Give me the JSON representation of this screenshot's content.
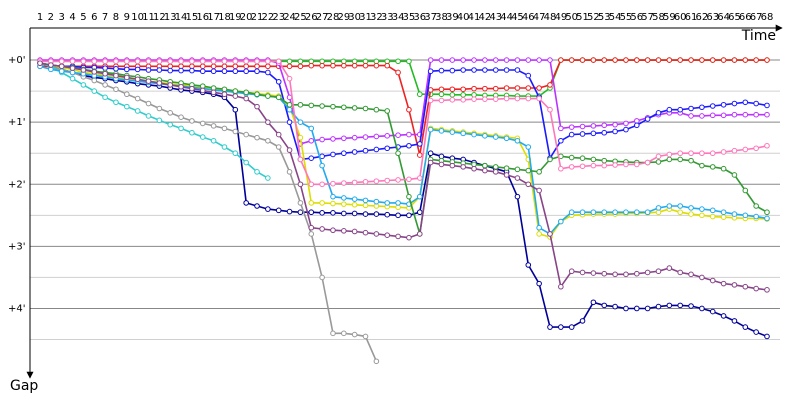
{
  "chart_data": {
    "type": "line",
    "x_label": "Time",
    "y_label": "Gap",
    "x": [
      1,
      2,
      3,
      4,
      5,
      6,
      7,
      8,
      9,
      10,
      11,
      12,
      13,
      14,
      15,
      16,
      17,
      18,
      19,
      20,
      21,
      22,
      23,
      24,
      25,
      26,
      27,
      28,
      29,
      30,
      31,
      32,
      33,
      34,
      35,
      36,
      37,
      38,
      39,
      40,
      41,
      42,
      43,
      44,
      45,
      46,
      47,
      48,
      49,
      50,
      51,
      52,
      53,
      54,
      55,
      56,
      57,
      58,
      59,
      60,
      61,
      62,
      63,
      64,
      65,
      66,
      67,
      68
    ],
    "xlim": [
      1,
      68
    ],
    "ylim": [
      -0.5,
      5.2
    ],
    "yticks": [
      {
        "value": 0,
        "label": "+0'"
      },
      {
        "value": 1,
        "label": "+1'"
      },
      {
        "value": 2,
        "label": "+2'"
      },
      {
        "value": 3,
        "label": "+3'"
      },
      {
        "value": 4,
        "label": "+4'"
      }
    ],
    "yminor": [
      0.5,
      1.5,
      2.5,
      3.5,
      4.5
    ],
    "grid": true,
    "series": [
      {
        "color": "#22bb22",
        "values": [
          0.02,
          0.02,
          0.02,
          0.02,
          0.02,
          0.02,
          0.02,
          0.02,
          0.02,
          0.02,
          0.02,
          0.02,
          0.02,
          0.02,
          0.02,
          0.02,
          0.02,
          0.02,
          0.02,
          0.02,
          0.02,
          0.02,
          0.02,
          0.02,
          0.02,
          0.02,
          0.02,
          0.02,
          0.02,
          0.02,
          0.02,
          0.02,
          0.02,
          0.02,
          0.02,
          0.55,
          0.55,
          0.55,
          0.56,
          0.56,
          0.56,
          0.57,
          0.57,
          0.57,
          0.58,
          0.58,
          0.58,
          0.45,
          0,
          0,
          0,
          0,
          0,
          0,
          0,
          0,
          0,
          0,
          0,
          0,
          0,
          0,
          0,
          0,
          0,
          0,
          0,
          0
        ]
      },
      {
        "color": "#ee2222",
        "values": [
          0.1,
          0.1,
          0.1,
          0.1,
          0.1,
          0.1,
          0.1,
          0.1,
          0.1,
          0.1,
          0.1,
          0.1,
          0.1,
          0.1,
          0.1,
          0.1,
          0.1,
          0.1,
          0.1,
          0.1,
          0.1,
          0.1,
          0.1,
          0.1,
          0.1,
          0.09,
          0.09,
          0.09,
          0.09,
          0.09,
          0.09,
          0.09,
          0.09,
          0.2,
          0.8,
          1.53,
          0.48,
          0.47,
          0.47,
          0.47,
          0.46,
          0.46,
          0.46,
          0.45,
          0.45,
          0.45,
          0.45,
          0.4,
          0,
          0,
          0,
          0,
          0,
          0,
          0,
          0,
          0,
          0,
          0,
          0,
          0,
          0,
          0,
          0,
          0,
          0,
          0,
          0
        ]
      },
      {
        "color": "#bb33ff",
        "values": [
          0,
          0,
          0,
          0,
          0,
          0,
          0,
          0,
          0,
          0,
          0,
          0,
          0,
          0,
          0,
          0,
          0,
          0,
          0,
          0,
          0,
          0,
          0.05,
          0.6,
          1.35,
          1.3,
          1.28,
          1.27,
          1.26,
          1.25,
          1.24,
          1.23,
          1.22,
          1.21,
          1.2,
          1.2,
          0,
          0,
          0,
          0,
          0,
          0,
          0,
          0,
          0,
          0,
          0,
          0,
          1.1,
          1.08,
          1.07,
          1.06,
          1.05,
          1.04,
          1.02,
          0.98,
          0.93,
          0.88,
          0.85,
          0.85,
          0.9,
          0.9,
          0.89,
          0.89,
          0.88,
          0.88,
          0.88,
          0.88
        ]
      },
      {
        "color": "#1a1aff",
        "values": [
          0.05,
          0.08,
          0.1,
          0.1,
          0.12,
          0.12,
          0.13,
          0.14,
          0.15,
          0.15,
          0.16,
          0.16,
          0.17,
          0.17,
          0.17,
          0.18,
          0.18,
          0.18,
          0.18,
          0.18,
          0.18,
          0.2,
          0.35,
          1.0,
          1.6,
          1.58,
          1.55,
          1.52,
          1.5,
          1.48,
          1.46,
          1.44,
          1.42,
          1.4,
          1.38,
          1.35,
          0.18,
          0.17,
          0.17,
          0.16,
          0.16,
          0.16,
          0.16,
          0.16,
          0.16,
          0.25,
          0.6,
          1.58,
          1.3,
          1.2,
          1.19,
          1.18,
          1.17,
          1.15,
          1.12,
          1.05,
          0.95,
          0.85,
          0.8,
          0.8,
          0.78,
          0.76,
          0.74,
          0.72,
          0.7,
          0.68,
          0.7,
          0.73
        ]
      },
      {
        "color": "#000099",
        "values": [
          0.05,
          0.1,
          0.15,
          0.2,
          0.25,
          0.28,
          0.3,
          0.33,
          0.35,
          0.38,
          0.4,
          0.42,
          0.45,
          0.48,
          0.5,
          0.52,
          0.55,
          0.6,
          0.8,
          2.3,
          2.35,
          2.4,
          2.42,
          2.44,
          2.45,
          2.45,
          2.46,
          2.46,
          2.47,
          2.47,
          2.48,
          2.48,
          2.49,
          2.5,
          2.5,
          2.45,
          1.5,
          1.55,
          1.58,
          1.6,
          1.65,
          1.7,
          1.75,
          1.8,
          2.2,
          3.3,
          3.6,
          4.3,
          4.3,
          4.3,
          4.2,
          3.9,
          3.95,
          3.97,
          4.0,
          4.0,
          4.0,
          3.97,
          3.95,
          3.95,
          3.96,
          4.0,
          4.05,
          4.12,
          4.2,
          4.3,
          4.38,
          4.45
        ]
      },
      {
        "color": "#999999",
        "values": [
          0.05,
          0.1,
          0.15,
          0.2,
          0.27,
          0.33,
          0.4,
          0.47,
          0.55,
          0.62,
          0.7,
          0.78,
          0.85,
          0.92,
          0.98,
          1.02,
          1.06,
          1.1,
          1.15,
          1.2,
          1.25,
          1.3,
          1.4,
          1.8,
          2.3,
          2.8,
          3.5,
          4.4,
          4.4,
          4.42,
          4.45,
          4.85,
          null,
          null,
          null,
          null,
          null,
          null,
          null,
          null,
          null,
          null,
          null,
          null,
          null,
          null,
          null,
          null,
          null,
          null,
          null,
          null,
          null,
          null,
          null,
          null,
          null,
          null,
          null,
          null,
          null,
          null,
          null,
          null,
          null,
          null,
          null,
          null
        ]
      },
      {
        "color": "#33cccc",
        "values": [
          0.05,
          0.1,
          0.2,
          0.3,
          0.4,
          0.5,
          0.6,
          0.68,
          0.75,
          0.82,
          0.9,
          0.97,
          1.04,
          1.1,
          1.17,
          1.24,
          1.3,
          1.4,
          1.5,
          1.65,
          1.8,
          1.9,
          null,
          null,
          null,
          null,
          null,
          null,
          null,
          null,
          null,
          null,
          null,
          null,
          null,
          null,
          null,
          null,
          null,
          null,
          null,
          null,
          null,
          null,
          null,
          null,
          null,
          null,
          null,
          null,
          null,
          null,
          null,
          null,
          null,
          null,
          null,
          null,
          null,
          null,
          null,
          null,
          null,
          null,
          null,
          null,
          null,
          null
        ]
      },
      {
        "color": "#dddd00",
        "values": [
          0.05,
          0.08,
          0.12,
          0.15,
          0.2,
          0.22,
          0.25,
          0.28,
          0.3,
          0.32,
          0.34,
          0.36,
          0.38,
          0.4,
          0.42,
          0.44,
          0.46,
          0.48,
          0.5,
          0.52,
          0.54,
          0.56,
          0.58,
          0.75,
          1.25,
          2.3,
          2.3,
          2.31,
          2.32,
          2.33,
          2.34,
          2.35,
          2.36,
          2.37,
          2.38,
          2.2,
          1.1,
          1.12,
          1.14,
          1.16,
          1.18,
          1.2,
          1.22,
          1.24,
          1.26,
          1.6,
          2.8,
          2.85,
          2.6,
          2.5,
          2.49,
          2.48,
          2.48,
          2.48,
          2.47,
          2.47,
          2.46,
          2.45,
          2.4,
          2.45,
          2.48,
          2.5,
          2.52,
          2.53,
          2.54,
          2.55,
          2.55,
          2.56
        ]
      },
      {
        "color": "#22aaee",
        "values": [
          0.1,
          0.15,
          0.18,
          0.2,
          0.22,
          0.25,
          0.27,
          0.3,
          0.32,
          0.34,
          0.36,
          0.38,
          0.4,
          0.42,
          0.44,
          0.46,
          0.48,
          0.5,
          0.52,
          0.54,
          0.56,
          0.58,
          0.6,
          0.8,
          1.0,
          1.1,
          1.7,
          2.2,
          2.22,
          2.24,
          2.26,
          2.28,
          2.3,
          2.3,
          2.32,
          2.2,
          1.12,
          1.14,
          1.16,
          1.18,
          1.2,
          1.22,
          1.24,
          1.26,
          1.3,
          1.4,
          2.7,
          2.8,
          2.6,
          2.45,
          2.45,
          2.45,
          2.45,
          2.45,
          2.45,
          2.45,
          2.45,
          2.38,
          2.35,
          2.35,
          2.38,
          2.4,
          2.42,
          2.45,
          2.48,
          2.5,
          2.52,
          2.55
        ]
      },
      {
        "color": "#339933",
        "values": [
          0.05,
          0.08,
          0.1,
          0.12,
          0.15,
          0.18,
          0.2,
          0.22,
          0.25,
          0.27,
          0.3,
          0.32,
          0.35,
          0.37,
          0.4,
          0.42,
          0.45,
          0.47,
          0.5,
          0.52,
          0.55,
          0.58,
          0.6,
          0.72,
          0.72,
          0.73,
          0.74,
          0.75,
          0.76,
          0.77,
          0.78,
          0.8,
          0.82,
          1.5,
          2.2,
          2.8,
          1.6,
          1.62,
          1.64,
          1.66,
          1.68,
          1.7,
          1.72,
          1.74,
          1.76,
          1.78,
          1.8,
          1.6,
          1.55,
          1.57,
          1.58,
          1.6,
          1.62,
          1.63,
          1.64,
          1.65,
          1.65,
          1.64,
          1.6,
          1.6,
          1.62,
          1.7,
          1.72,
          1.75,
          1.85,
          2.1,
          2.35,
          2.45
        ]
      },
      {
        "color": "#ff77bb",
        "values": [
          0.02,
          0.02,
          0.02,
          0.02,
          0.02,
          0.02,
          0.02,
          0.02,
          0.02,
          0.02,
          0.02,
          0.02,
          0.02,
          0.02,
          0.02,
          0.02,
          0.02,
          0.02,
          0.02,
          0.02,
          0.02,
          0.02,
          0.02,
          0.3,
          1.6,
          2.0,
          2.0,
          1.99,
          1.98,
          1.97,
          1.96,
          1.95,
          1.94,
          1.93,
          1.92,
          1.9,
          0.65,
          0.65,
          0.64,
          0.64,
          0.63,
          0.63,
          0.63,
          0.62,
          0.62,
          0.62,
          0.62,
          0.8,
          1.75,
          1.72,
          1.71,
          1.7,
          1.7,
          1.69,
          1.68,
          1.68,
          1.65,
          1.55,
          1.52,
          1.5,
          1.5,
          1.5,
          1.5,
          1.48,
          1.46,
          1.44,
          1.42,
          1.38
        ]
      },
      {
        "color": "#884488",
        "values": [
          0.05,
          0.08,
          0.1,
          0.13,
          0.16,
          0.19,
          0.22,
          0.25,
          0.28,
          0.31,
          0.34,
          0.37,
          0.4,
          0.43,
          0.46,
          0.49,
          0.52,
          0.55,
          0.58,
          0.62,
          0.75,
          1.0,
          1.2,
          1.45,
          2.0,
          2.7,
          2.72,
          2.74,
          2.75,
          2.76,
          2.78,
          2.8,
          2.82,
          2.84,
          2.86,
          2.8,
          1.65,
          1.68,
          1.7,
          1.72,
          1.75,
          1.78,
          1.8,
          1.85,
          1.9,
          2.0,
          2.1,
          2.8,
          3.65,
          3.4,
          3.42,
          3.43,
          3.44,
          3.45,
          3.45,
          3.44,
          3.42,
          3.4,
          3.35,
          3.42,
          3.45,
          3.5,
          3.55,
          3.6,
          3.62,
          3.65,
          3.68,
          3.7
        ]
      }
    ]
  }
}
